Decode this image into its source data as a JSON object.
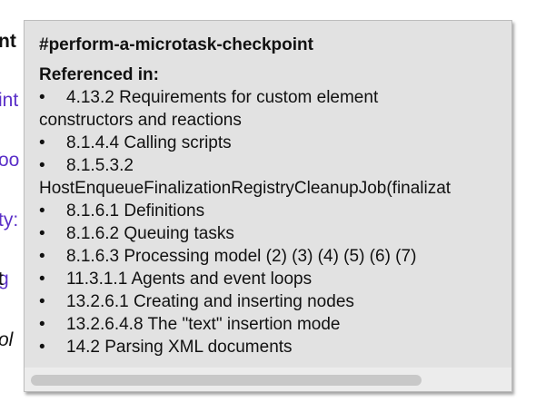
{
  "background": {
    "fragments": [
      "nt",
      "int",
      "oo",
      "ty:",
      "g",
      "ol"
    ],
    "fragment_tail": "t"
  },
  "popup": {
    "anchor": "#perform-a-microtask-checkpoint",
    "referenced_heading": "Referenced in:",
    "references": [
      {
        "line1": "4.13.2 Requirements for custom element",
        "line2": "constructors and reactions"
      },
      {
        "line1": "8.1.4.4 Calling scripts"
      },
      {
        "line1": "8.1.5.3.2",
        "line2": "HostEnqueueFinalizationRegistryCleanupJob(finalizat"
      },
      {
        "line1": "8.1.6.1 Definitions"
      },
      {
        "line1": "8.1.6.2 Queuing tasks"
      },
      {
        "line1": "8.1.6.3 Processing model (2) (3) (4) (5) (6) (7)"
      },
      {
        "line1": "11.3.1.1 Agents and event loops"
      },
      {
        "line1": "13.2.6.1 Creating and inserting nodes"
      },
      {
        "line1": "13.2.6.4.8 The \"text\" insertion mode"
      },
      {
        "line1": "14.2 Parsing XML documents"
      }
    ]
  },
  "colors": {
    "panel_bg": "#e2e2e2",
    "link": "#5a2fc8",
    "scroll_thumb": "#c8c8c8"
  },
  "icons": {
    "bullet": "bullet-icon"
  }
}
